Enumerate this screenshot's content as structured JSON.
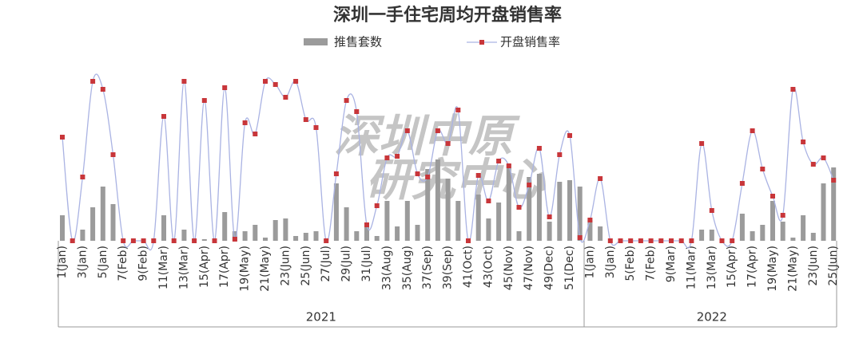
{
  "chart_data": {
    "type": "bar-line",
    "title": "深圳一手住宅周均开盘销售率",
    "watermark": [
      "深圳中原",
      "研究中心"
    ],
    "groups": [
      {
        "label": "2021",
        "categories": [
          "1(Jan)",
          null,
          "3(Jan)",
          null,
          "5(Jan)",
          null,
          "7(Feb)",
          null,
          "9(Feb)",
          null,
          "11(Mar)",
          null,
          "13(Mar)",
          null,
          "15(Apr)",
          null,
          "17(Apr)",
          null,
          "19(May)",
          null,
          "21(May)",
          null,
          "23(Jun)",
          null,
          "25(Jun)",
          null,
          "27(Jul)",
          null,
          "29(Jul)",
          null,
          "31(Jul)",
          null,
          "33(Aug)",
          null,
          "35(Aug)",
          null,
          "37(Sep)",
          null,
          "39(Sep)",
          null,
          "41(Oct)",
          null,
          "43(Oct)",
          null,
          "45(Nov)",
          null,
          "47(Nov)",
          null,
          "49(Dec)",
          null,
          "51(Dec)",
          null
        ]
      },
      {
        "label": "2022",
        "categories": [
          "1(Jan)",
          null,
          "3(Jan)",
          null,
          "5(Feb)",
          null,
          "7(Feb)",
          null,
          "9(Mar)",
          null,
          "11(Mar)",
          null,
          "13(Mar)",
          null,
          "15(Apr)",
          null,
          "17(Apr)",
          null,
          "19(May)",
          null,
          "21(May)",
          null,
          "23(Jun)",
          null,
          "25(Jun)"
        ]
      }
    ],
    "series": [
      {
        "name": "推售套数",
        "type": "bar",
        "color": "#9b9b9b",
        "values": [
          16,
          0,
          7,
          21,
          34,
          23,
          0,
          0,
          0,
          0,
          16,
          0,
          7,
          1,
          1,
          1,
          18,
          6,
          6,
          10,
          2,
          13,
          14,
          3,
          5,
          6,
          1,
          36,
          21,
          6,
          10,
          3,
          25,
          9,
          25,
          10,
          45,
          51,
          39,
          25,
          1,
          29,
          14,
          24,
          48,
          6,
          40,
          42,
          12,
          37,
          38,
          34,
          13,
          9,
          0,
          0,
          0,
          0,
          0,
          0,
          0,
          0,
          0,
          7,
          7,
          0,
          0,
          17,
          6,
          10,
          25,
          12,
          2,
          16,
          5,
          36,
          46
        ]
      },
      {
        "name": "开盘销售率",
        "type": "line",
        "color": "#aab3e3",
        "marker_color": "#c8363a",
        "values": [
          65,
          0,
          40,
          100,
          95,
          54,
          0,
          0,
          0,
          0,
          78,
          0,
          100,
          0,
          88,
          0,
          96,
          1,
          74,
          67,
          100,
          98,
          90,
          100,
          76,
          71,
          0,
          42,
          88,
          81,
          10,
          22,
          52,
          53,
          69,
          42,
          40,
          69,
          61,
          82,
          0,
          41,
          25,
          50,
          47,
          21,
          35,
          58,
          15,
          54,
          66,
          2,
          13,
          39,
          0,
          0,
          0,
          0,
          0,
          0,
          0,
          0,
          0,
          61,
          19,
          0,
          0,
          36,
          69,
          45,
          28,
          16,
          95,
          62,
          48,
          52,
          38
        ]
      }
    ]
  }
}
